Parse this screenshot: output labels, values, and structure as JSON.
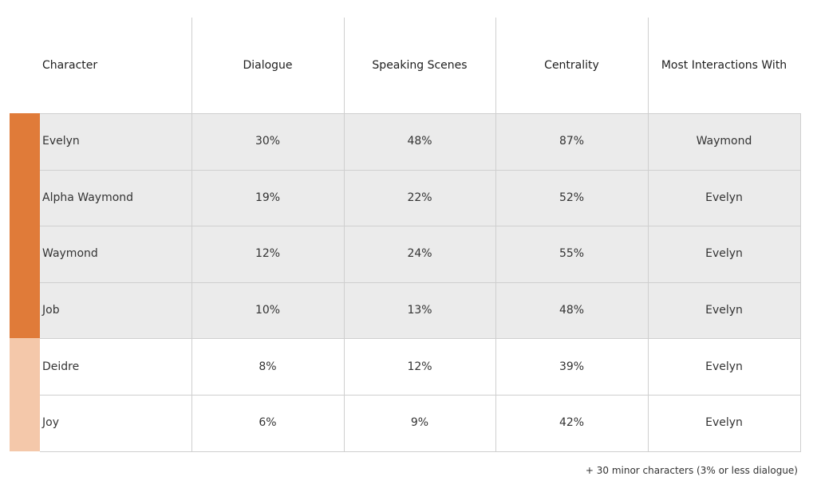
{
  "chart_data": {
    "type": "table",
    "columns": [
      "Character",
      "Dialogue",
      "Speaking Scenes",
      "Centrality",
      "Most Interactions With"
    ],
    "rows": [
      {
        "character": "Evelyn",
        "dialogue": "30%",
        "speaking_scenes": "48%",
        "centrality": "87%",
        "most_interactions_with": "Waymond",
        "group": "major"
      },
      {
        "character": "Alpha Waymond",
        "dialogue": "19%",
        "speaking_scenes": "22%",
        "centrality": "52%",
        "most_interactions_with": "Evelyn",
        "group": "major"
      },
      {
        "character": "Waymond",
        "dialogue": "12%",
        "speaking_scenes": "24%",
        "centrality": "55%",
        "most_interactions_with": "Evelyn",
        "group": "major"
      },
      {
        "character": "Job",
        "dialogue": "10%",
        "speaking_scenes": "13%",
        "centrality": "48%",
        "most_interactions_with": "Evelyn",
        "group": "major"
      },
      {
        "character": "Deidre",
        "dialogue": "8%",
        "speaking_scenes": "12%",
        "centrality": "39%",
        "most_interactions_with": "Evelyn",
        "group": "minor"
      },
      {
        "character": "Joy",
        "dialogue": "6%",
        "speaking_scenes": "9%",
        "centrality": "42%",
        "most_interactions_with": "Evelyn",
        "group": "minor"
      }
    ],
    "footnote": "+ 30 minor characters (3% or less dialogue)"
  },
  "colors": {
    "major_accent": "#e07b39",
    "minor_accent": "#f4c8aa",
    "major_row_bg": "#ebebeb",
    "minor_row_bg": "#ffffff",
    "grid": "#cfcfcf"
  }
}
